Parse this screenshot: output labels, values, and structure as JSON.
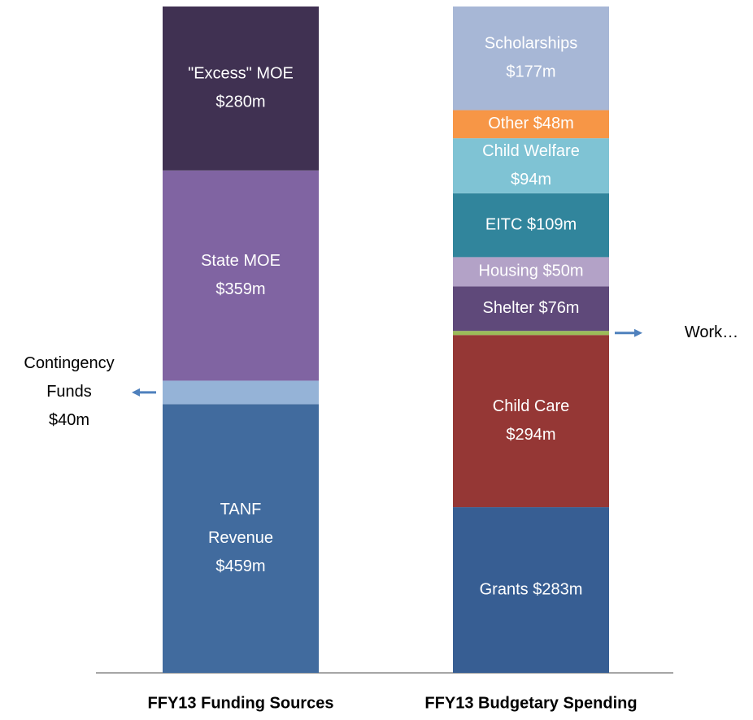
{
  "chart_data": {
    "type": "stacked-bar",
    "ylim": [
      0,
      1138
    ],
    "bars": [
      {
        "category": "FFY13 Funding Sources",
        "segments": [
          {
            "label": [
              "TANF",
              "Revenue",
              "$459m"
            ],
            "value": 459,
            "color": "#416b9e"
          },
          {
            "label": [
              "Contingency",
              "Funds",
              "$40m"
            ],
            "value": 40,
            "color": "#95b3d7",
            "outside": "left"
          },
          {
            "label": [
              "State MOE",
              "$359m"
            ],
            "value": 359,
            "color": "#8064a2"
          },
          {
            "label": [
              "\"Excess\" MOE",
              "$280m"
            ],
            "value": 280,
            "color": "#403152"
          }
        ]
      },
      {
        "category": "FFY13 Budgetary Spending",
        "segments": [
          {
            "label": [
              "Grants $283m"
            ],
            "value": 283,
            "color": "#375e93"
          },
          {
            "label": [
              "Child Care",
              "$294m"
            ],
            "value": 294,
            "color": "#953735"
          },
          {
            "label": [
              "Work…"
            ],
            "value": 7,
            "color": "#9bbb59",
            "outside": "right"
          },
          {
            "label": [
              "Shelter $76m"
            ],
            "value": 76,
            "color": "#5f497a"
          },
          {
            "label": [
              "Housing $50m"
            ],
            "value": 50,
            "color": "#b3a2c7"
          },
          {
            "label": [
              "EITC $109m"
            ],
            "value": 109,
            "color": "#31859c"
          },
          {
            "label": [
              "Child Welfare",
              "$94m"
            ],
            "value": 94,
            "color": "#7fc3d4"
          },
          {
            "label": [
              "Other $48m"
            ],
            "value": 48,
            "color": "#f79646"
          },
          {
            "label": [
              "Scholarships",
              "$177m"
            ],
            "value": 177,
            "color": "#a7b7d6"
          }
        ]
      }
    ]
  }
}
